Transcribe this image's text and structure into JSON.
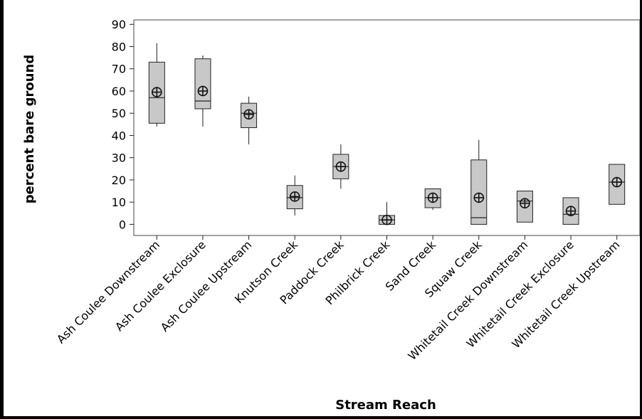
{
  "chart_data": {
    "type": "boxplot",
    "title": "",
    "xlabel": "Stream Reach",
    "ylabel": "percent bare ground",
    "ylim": [
      -5,
      92
    ],
    "yticks": [
      0,
      10,
      20,
      30,
      40,
      50,
      60,
      70,
      80,
      90
    ],
    "ytick_labels": [
      "0",
      "10",
      "20",
      "30",
      "40",
      "50",
      "60",
      "70",
      "80",
      "90"
    ],
    "grid": false,
    "legend": "none",
    "box_fill": "#c8c8c8",
    "stroke": "#222222",
    "categories": [
      "Ash Coulee Downstream",
      "Ash Coulee Exclosure",
      "Ash Coulee Upstream",
      "Knutson Creek",
      "Paddock Creek",
      "Philbrick Creek",
      "Sand Creek",
      "Squaw Creek",
      "Whitetail Creek Downstream",
      "Whitetail Creek Exclosure",
      "Whitetail Creek Upstream"
    ],
    "boxes": [
      {
        "whisker_low": 44,
        "q1": 45.5,
        "median": 57,
        "q3": 73,
        "whisker_high": 81.5,
        "mean": 59.5
      },
      {
        "whisker_low": 44,
        "q1": 52,
        "median": 55.5,
        "q3": 74.5,
        "whisker_high": 76,
        "mean": 60
      },
      {
        "whisker_low": 36,
        "q1": 43.5,
        "median": 50,
        "q3": 54.5,
        "whisker_high": 57.5,
        "mean": 49.5
      },
      {
        "whisker_low": 4,
        "q1": 7,
        "median": 12,
        "q3": 17.5,
        "whisker_high": 22,
        "mean": 12.5
      },
      {
        "whisker_low": 16,
        "q1": 20.5,
        "median": 26,
        "q3": 31.5,
        "whisker_high": 36,
        "mean": 26
      },
      {
        "whisker_low": 0,
        "q1": 0,
        "median": 2,
        "q3": 4,
        "whisker_high": 10,
        "mean": 2
      },
      {
        "whisker_low": 6.5,
        "q1": 7.5,
        "median": 12,
        "q3": 16,
        "whisker_high": 16,
        "mean": 12
      },
      {
        "whisker_low": 0,
        "q1": 0,
        "median": 3,
        "q3": 29,
        "whisker_high": 38,
        "mean": 12
      },
      {
        "whisker_low": 1,
        "q1": 1,
        "median": 10.5,
        "q3": 15,
        "whisker_high": 15,
        "mean": 9.5
      },
      {
        "whisker_low": 0,
        "q1": 0,
        "median": 4.5,
        "q3": 12,
        "whisker_high": 12,
        "mean": 6
      },
      {
        "whisker_low": 9,
        "q1": 9,
        "median": 19,
        "q3": 27,
        "whisker_high": 27,
        "mean": 19
      }
    ]
  }
}
